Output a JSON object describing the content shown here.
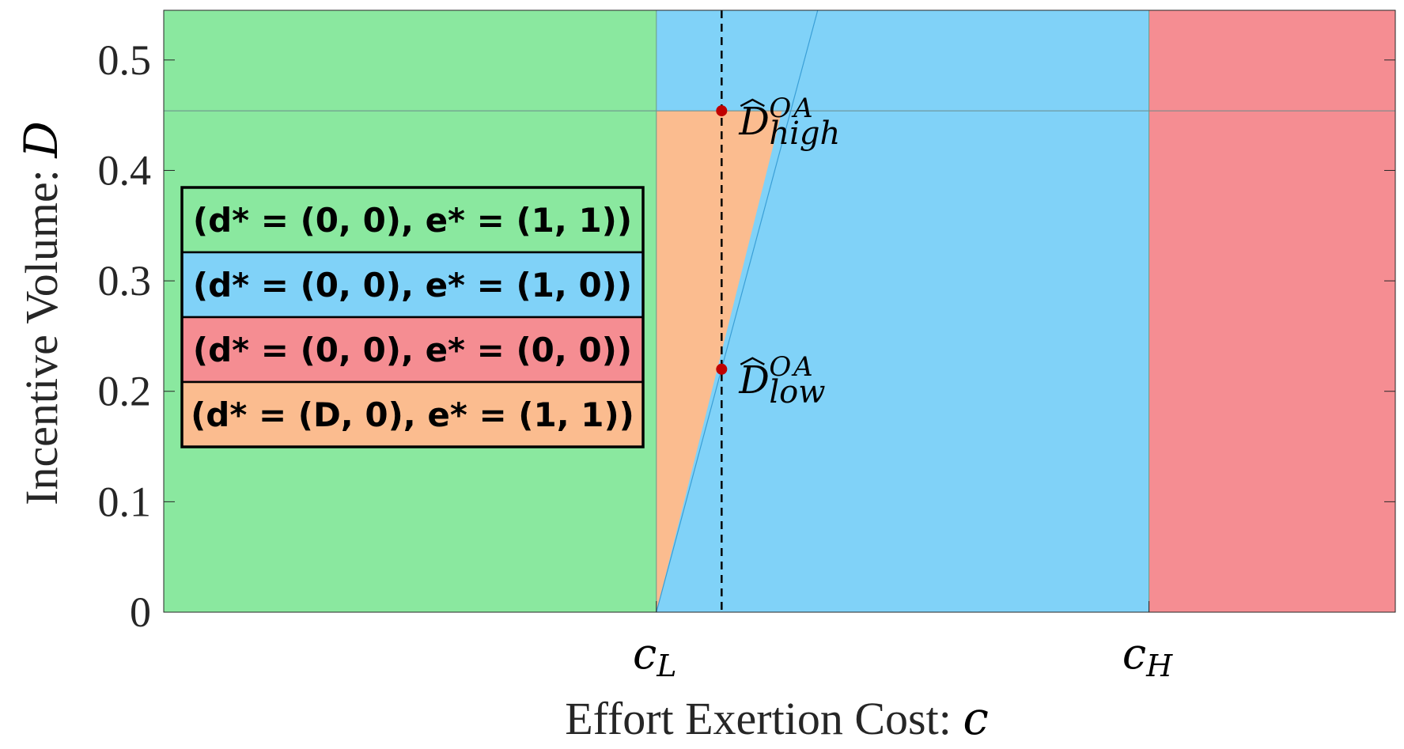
{
  "chart_data": {
    "type": "area",
    "title": "",
    "xlabel": "Effort Exertion Cost: c",
    "ylabel": "Incentive Volume: D",
    "xlabel_text": "Effort Exertion Cost: ",
    "xlabel_var": "c",
    "ylabel_text": "Incentive Volume: ",
    "ylabel_var": "D",
    "xlim": [
      0,
      1
    ],
    "ylim": [
      0,
      0.545
    ],
    "y_ticks": [
      0,
      0.1,
      0.2,
      0.3,
      0.4,
      0.5
    ],
    "y_tick_labels": [
      "0",
      "0.1",
      "0.2",
      "0.3",
      "0.4",
      "0.5"
    ],
    "x_ticks": [
      {
        "value": 0.4,
        "label": "c",
        "subscript": "L"
      },
      {
        "value": 0.8,
        "label": "c",
        "subscript": "H"
      }
    ],
    "grid": false,
    "legend_placement": "center-left",
    "legend": [
      {
        "label": "(d* = (0, 0), e* = (1, 1))",
        "color": "#8ae89f"
      },
      {
        "label": "(d* = (0, 0), e* = (1, 0))",
        "color": "#80d2f8"
      },
      {
        "label": "(d* = (0, 0), e* = (0, 0))",
        "color": "#f58d92"
      },
      {
        "label": "(d* = (D, 0), e* = (1, 1))",
        "color": "#fbbc8f"
      }
    ],
    "regions": [
      {
        "name": "green",
        "color": "#8ae89f",
        "polygon": [
          [
            0,
            0
          ],
          [
            0.4,
            0
          ],
          [
            0.4,
            0.545
          ],
          [
            0,
            0.545
          ]
        ]
      },
      {
        "name": "blue",
        "color": "#80d2f8",
        "polygon": [
          [
            0.4,
            0
          ],
          [
            0.8,
            0
          ],
          [
            0.8,
            0.545
          ],
          [
            0.4,
            0.545
          ]
        ]
      },
      {
        "name": "red",
        "color": "#f58d92",
        "polygon": [
          [
            0.8,
            0
          ],
          [
            1,
            0
          ],
          [
            1,
            0.545
          ],
          [
            0.8,
            0.545
          ]
        ]
      },
      {
        "name": "orange",
        "color": "#fbbc8f",
        "polygon": [
          [
            0.4,
            0
          ],
          [
            0.4,
            0.454
          ],
          [
            0.502,
            0.454
          ]
        ]
      }
    ],
    "boundary_line": {
      "x": [
        0.4,
        0.531
      ],
      "y": [
        0,
        0.545
      ]
    },
    "horizontal_line": {
      "y": 0.454
    },
    "dashed_line": {
      "x": 0.453
    },
    "points": [
      {
        "name": "D_high",
        "x": 0.453,
        "y": 0.454,
        "label": "D",
        "superscript": "OA",
        "subscript": "high"
      },
      {
        "name": "D_low",
        "x": 0.453,
        "y": 0.22,
        "label": "D",
        "superscript": "OA",
        "subscript": "low"
      }
    ],
    "point_color": "#c00000"
  }
}
